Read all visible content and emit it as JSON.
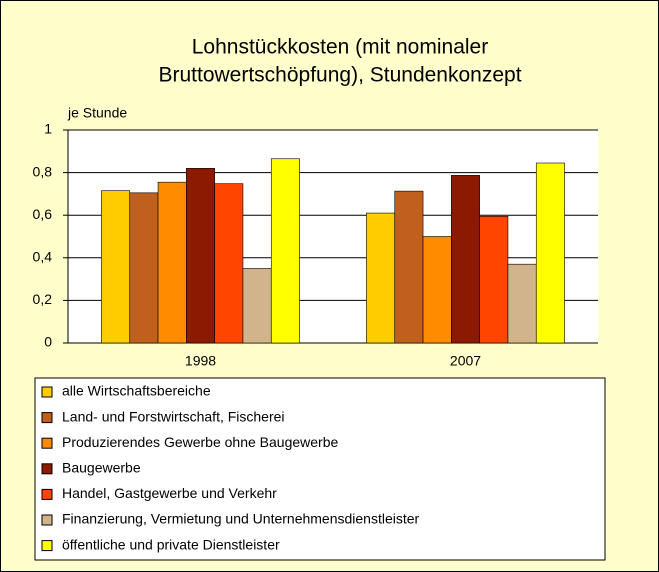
{
  "chart_data": {
    "type": "bar",
    "title": [
      "Lohnstückkosten (mit nominaler",
      "Bruttowertschöpfung), Stundenkonzept"
    ],
    "y_label": "je Stunde",
    "categories": [
      "1998",
      "2007"
    ],
    "series": [
      {
        "name": "alle Wirtschaftsbereiche",
        "color": "#ffcc00",
        "values": [
          0.715,
          0.61
        ]
      },
      {
        "name": "Land- und Forstwirtschaft, Fischerei",
        "color": "#c0601c",
        "values": [
          0.705,
          0.713
        ]
      },
      {
        "name": "Produzierendes Gewerbe ohne Baugewerbe",
        "color": "#ff8c00",
        "values": [
          0.755,
          0.5
        ]
      },
      {
        "name": "Baugewerbe",
        "color": "#8b1a00",
        "values": [
          0.82,
          0.787
        ]
      },
      {
        "name": "Handel, Gastgewerbe und Verkehr",
        "color": "#ff4500",
        "values": [
          0.748,
          0.595
        ]
      },
      {
        "name": "Finanzierung, Vermietung und Unternehmensdienstleister",
        "color": "#d2b48c",
        "values": [
          0.35,
          0.37
        ]
      },
      {
        "name": "öffentliche und private Dienstleister",
        "color": "#ffff00",
        "values": [
          0.865,
          0.845
        ]
      }
    ],
    "ylim": [
      0,
      1
    ],
    "yticks": [
      0,
      {
        "value": 0.2,
        "label": "0,2"
      },
      {
        "value": 0.4,
        "label": "0,4"
      },
      {
        "value": 0.6,
        "label": "0,6"
      },
      {
        "value": 0.8,
        "label": "0,8"
      },
      1
    ],
    "grid": true
  }
}
